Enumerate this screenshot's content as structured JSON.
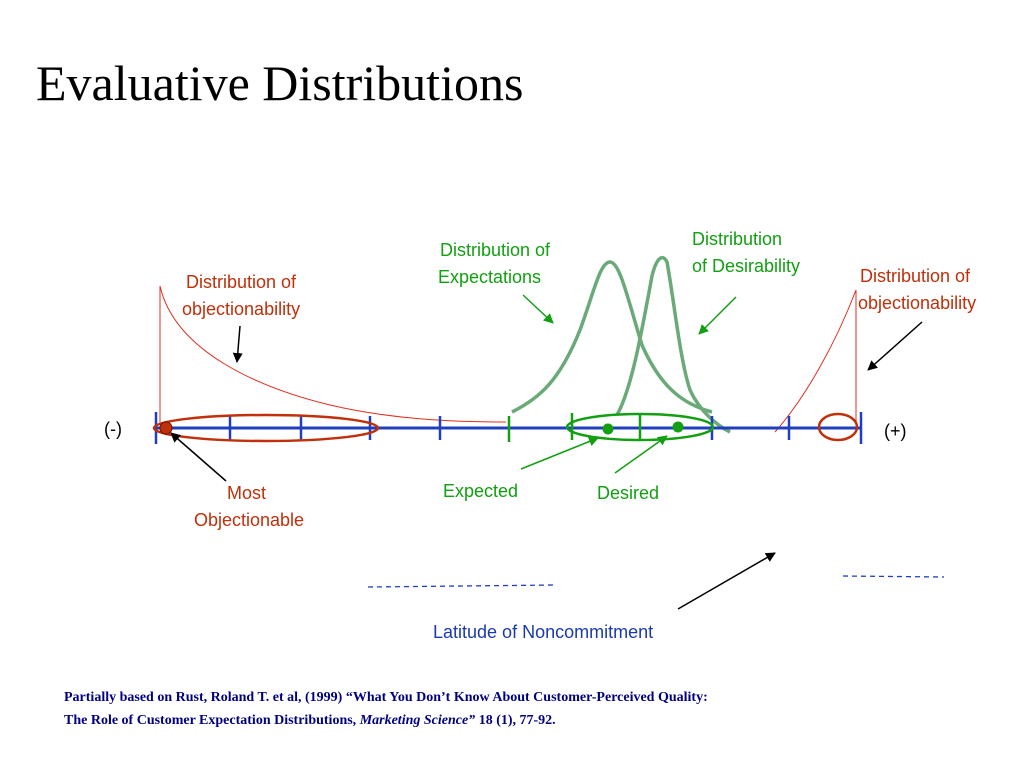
{
  "title": "Evaluative Distributions",
  "diagram": {
    "axis": {
      "left_label": "(-)",
      "right_label": "(+)"
    },
    "labels": {
      "objectionability_left": [
        "Distribution of",
        "objectionability"
      ],
      "objectionability_right": [
        "Distribution of",
        "objectionability"
      ],
      "expectations": [
        "Distribution of",
        "Expectations"
      ],
      "desirability": [
        "Distribution",
        "of Desirability"
      ],
      "most_objectionable": [
        "Most",
        "Objectionable"
      ],
      "expected": "Expected",
      "desired": "Desired",
      "latitude": "Latitude of Noncommitment"
    },
    "colors": {
      "axis": "#1f3fbf",
      "objectionability": "#e03020",
      "objectionability_text": "#c0300a",
      "expectation": "#6aaa78",
      "expected_text": "#12a012",
      "latitude_text": "#1a3ab0",
      "dashed": "#1f3fbf",
      "arrows": "#000000"
    }
  },
  "footnote": {
    "line1": "Partially based on Rust, Roland T. et al,  (1999) “What You Don’t Know About Customer-Perceived Quality:",
    "line2_plain": "The Role of Customer Expectation Distributions, ",
    "line2_italic": "Marketing Science”",
    "line2_end": " 18 (1), 77-92."
  }
}
